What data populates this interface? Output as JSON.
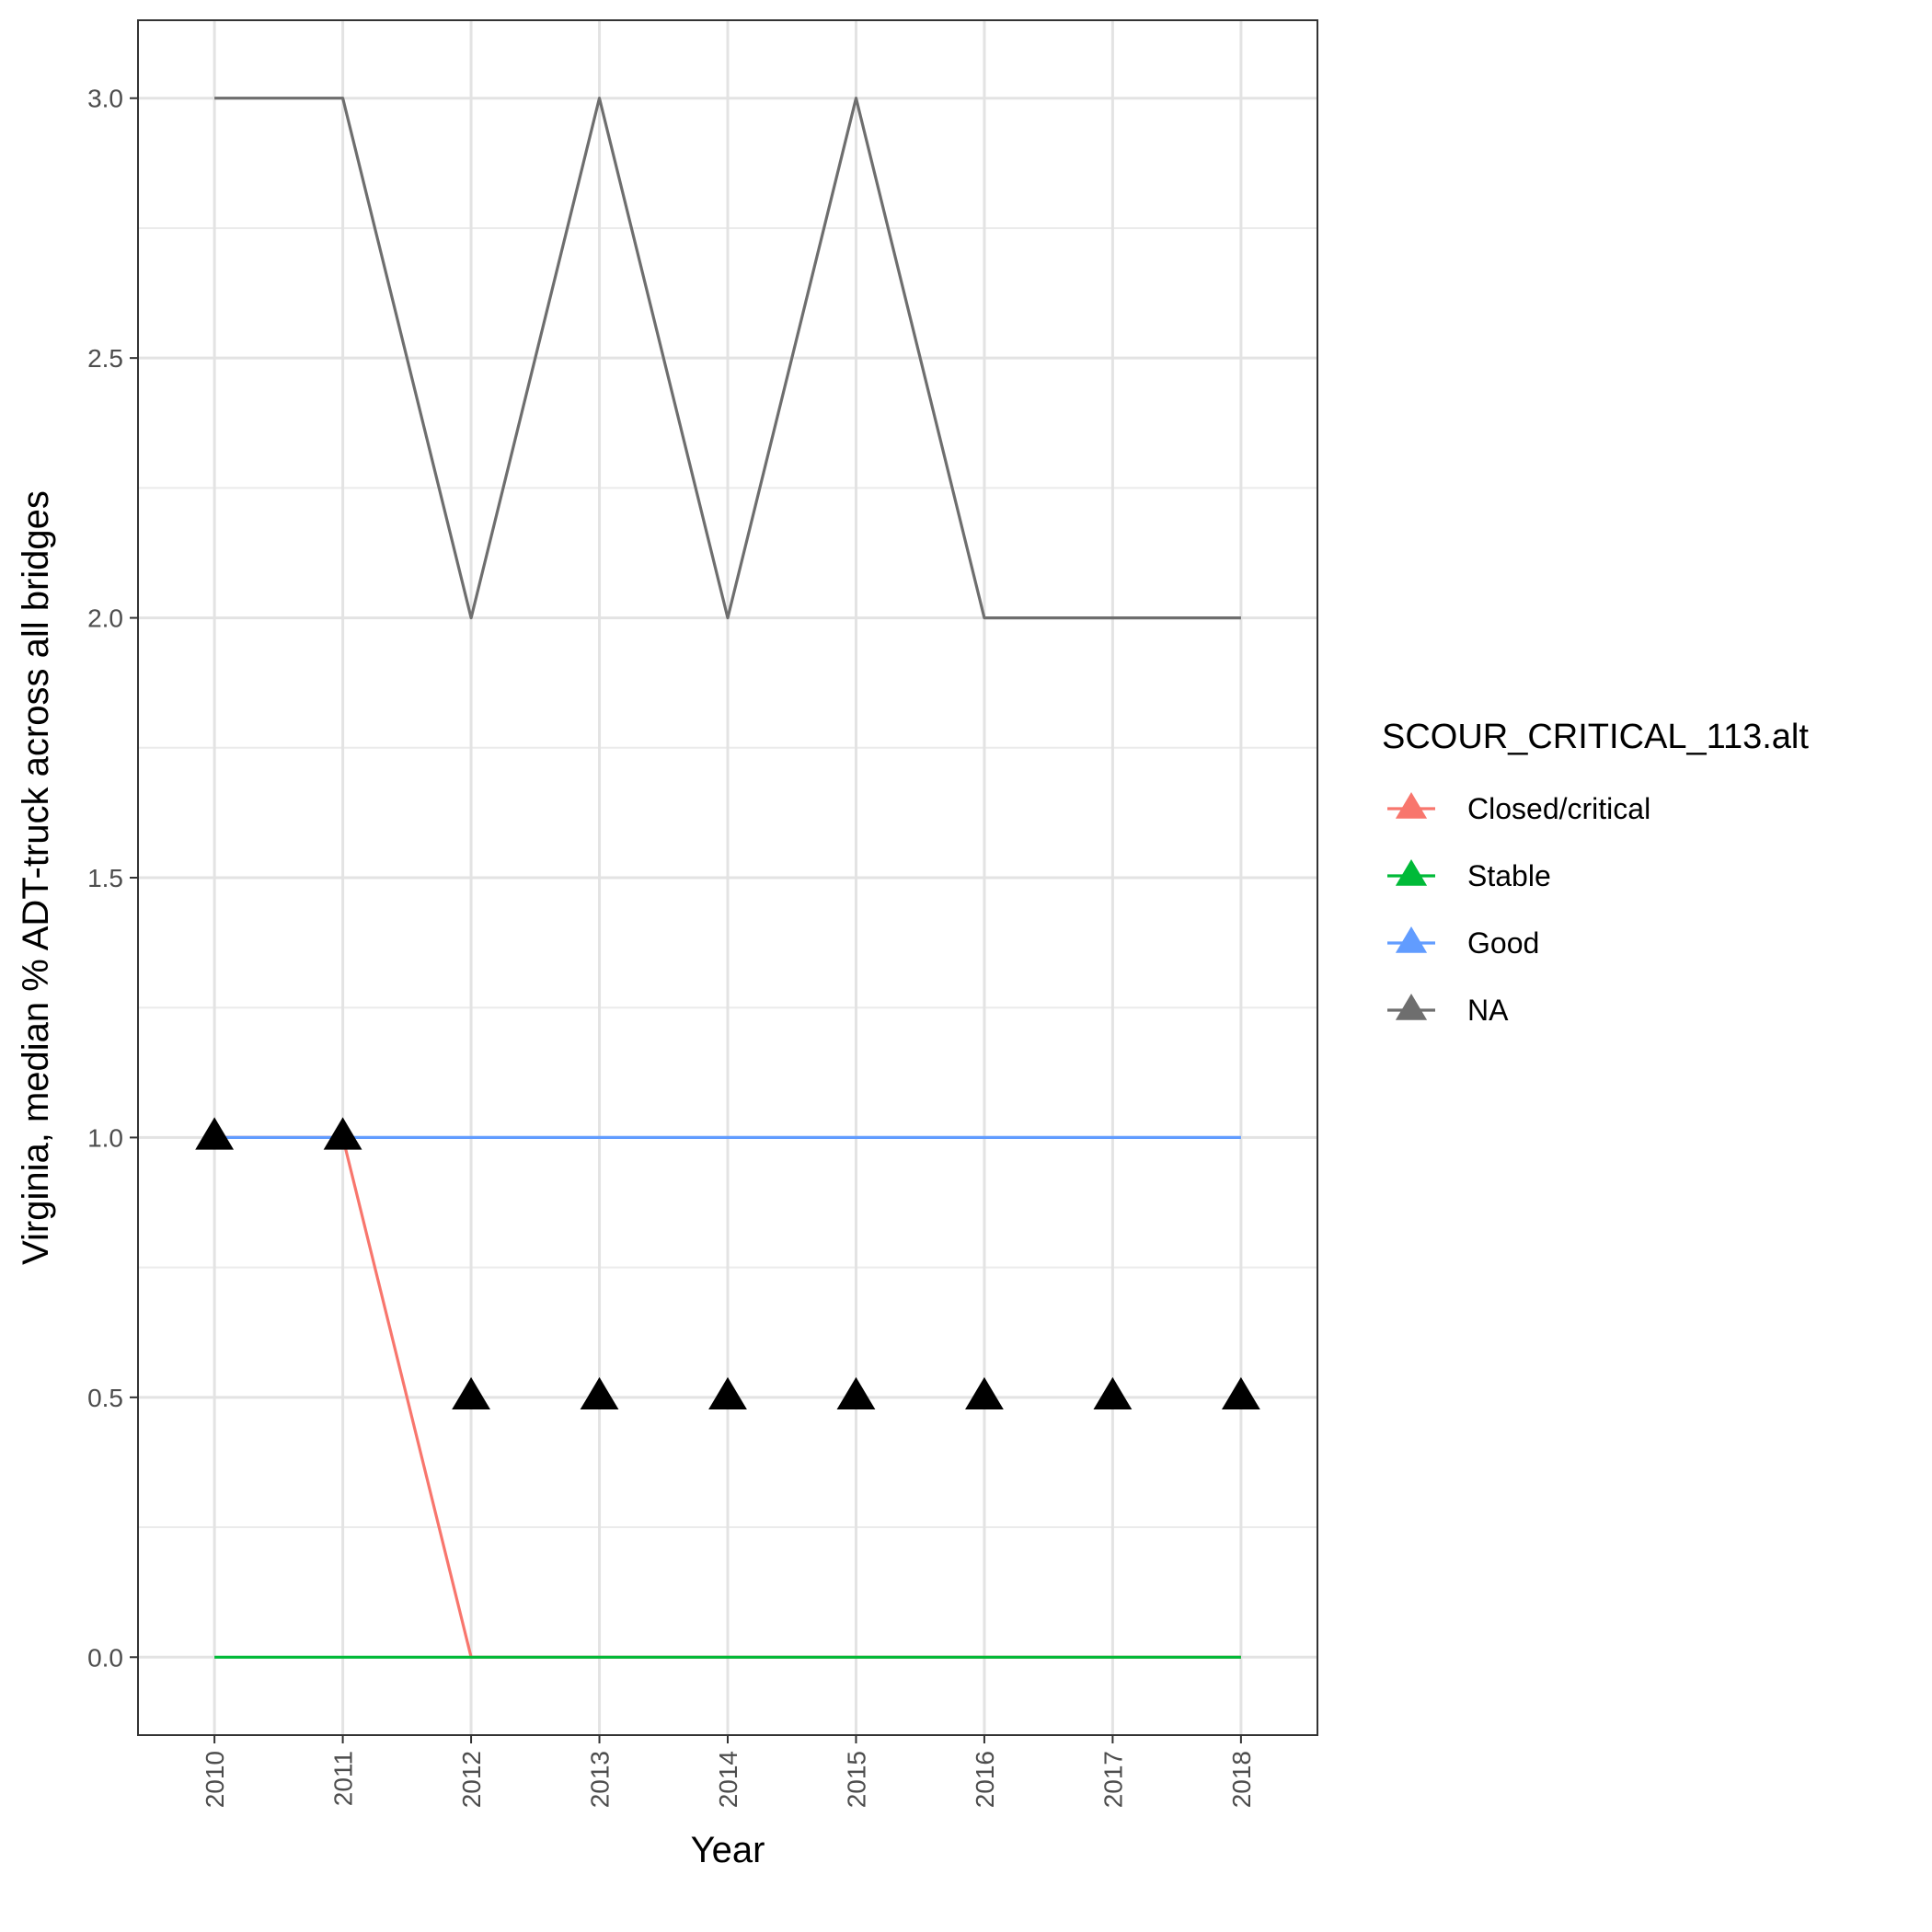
{
  "chart_data": {
    "type": "line",
    "title": "",
    "xlabel": "Year",
    "ylabel": "Virginia, median % ADT-truck across all bridges",
    "x": [
      2010,
      2011,
      2012,
      2013,
      2014,
      2015,
      2016,
      2017,
      2018
    ],
    "x_tick_labels": [
      "2010",
      "2011",
      "2012",
      "2013",
      "2014",
      "2015",
      "2016",
      "2017",
      "2018"
    ],
    "ylim": [
      -0.15,
      3.15
    ],
    "y_ticks": [
      0.0,
      0.5,
      1.0,
      1.5,
      2.0,
      2.5,
      3.0
    ],
    "y_tick_labels": [
      "0.0",
      "0.5",
      "1.0",
      "1.5",
      "2.0",
      "2.5",
      "3.0"
    ],
    "grid": true,
    "legend_title": "SCOUR_CRITICAL_113.alt",
    "legend_position": "right",
    "series": [
      {
        "name": "Closed/critical",
        "color": "#F8766D",
        "values": [
          1,
          1,
          0,
          0,
          0,
          0,
          0,
          0,
          0
        ]
      },
      {
        "name": "Stable",
        "color": "#00BA38",
        "values": [
          0,
          0,
          0,
          0,
          0,
          0,
          0,
          0,
          0
        ]
      },
      {
        "name": "Good",
        "color": "#619CFF",
        "values": [
          1,
          1,
          1,
          1,
          1,
          1,
          1,
          1,
          1
        ]
      },
      {
        "name": "NA",
        "color": "#6E6E6E",
        "values": [
          3,
          3,
          2,
          3,
          2,
          3,
          2,
          2,
          2
        ]
      }
    ],
    "markers": {
      "shape": "triangle",
      "color": "#000000",
      "values": [
        1,
        1,
        0.5,
        0.5,
        0.5,
        0.5,
        0.5,
        0.5,
        0.5
      ]
    }
  }
}
